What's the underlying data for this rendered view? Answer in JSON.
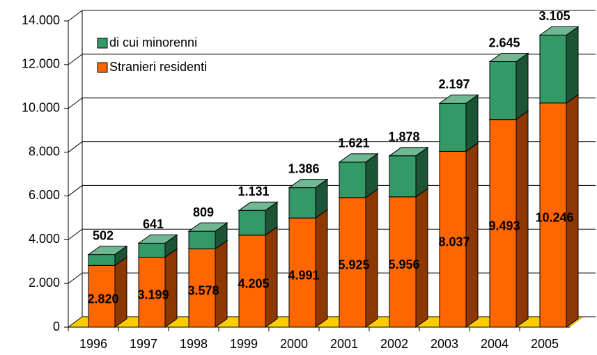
{
  "chart_data": {
    "type": "bar3d-stacked",
    "categories": [
      "1996",
      "1997",
      "1998",
      "1999",
      "2000",
      "2001",
      "2002",
      "2003",
      "2004",
      "2005"
    ],
    "series": [
      {
        "name": "Stranieri residenti",
        "color": "#ff6600",
        "values": [
          2820,
          3199,
          3578,
          4205,
          4991,
          5925,
          5956,
          8037,
          9493,
          10246
        ],
        "value_labels": [
          "2.820",
          "3.199",
          "3.578",
          "4.205",
          "4.991",
          "5.925",
          "5.956",
          "8.037",
          "9.493",
          "10.246"
        ]
      },
      {
        "name": "di cui minorenni",
        "color": "#339966",
        "values": [
          502,
          641,
          809,
          1131,
          1386,
          1621,
          1878,
          2197,
          2645,
          3105
        ],
        "value_labels": [
          "502",
          "641",
          "809",
          "1.131",
          "1.386",
          "1.621",
          "1.878",
          "2.197",
          "2.645",
          "3.105"
        ]
      }
    ],
    "ylim": [
      0,
      14000
    ],
    "yticks": [
      {
        "value": 0,
        "label": "0"
      },
      {
        "value": 2000,
        "label": "2.000"
      },
      {
        "value": 4000,
        "label": "4.000"
      },
      {
        "value": 6000,
        "label": "6.000"
      },
      {
        "value": 8000,
        "label": "8.000"
      },
      {
        "value": 10000,
        "label": "10.000"
      },
      {
        "value": 12000,
        "label": "12.000"
      },
      {
        "value": 14000,
        "label": "14.000"
      }
    ],
    "grid": true,
    "floor_color": "#ffcc00"
  }
}
